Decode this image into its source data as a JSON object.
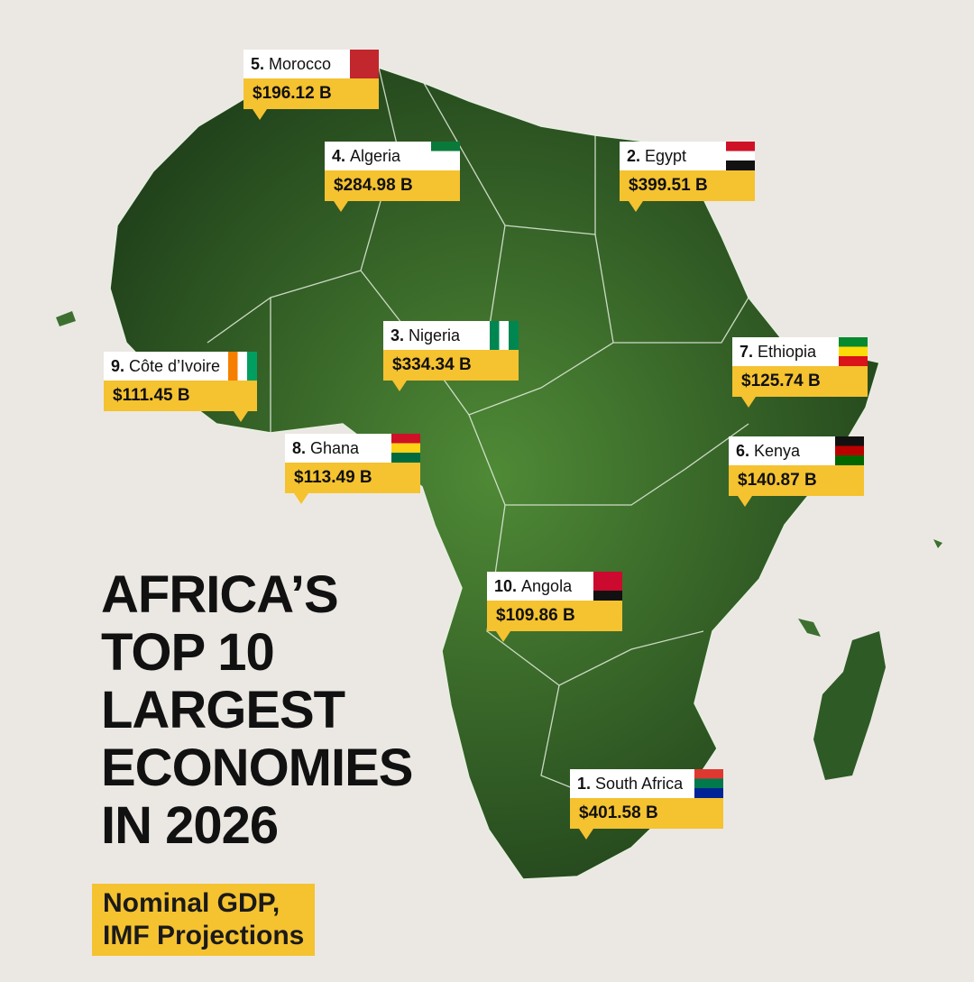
{
  "title": [
    "AFRICA’S",
    "TOP 10",
    "LARGEST",
    "ECONOMIES",
    "IN 2026"
  ],
  "subtitle": [
    "Nominal GDP,",
    "IMF Projections"
  ],
  "labels": [
    {
      "rank": "5.",
      "country": "Morocco",
      "value": "$196.12 B"
    },
    {
      "rank": "4.",
      "country": "Algeria",
      "value": "$284.98 B"
    },
    {
      "rank": "2.",
      "country": "Egypt",
      "value": "$399.51 B"
    },
    {
      "rank": "3.",
      "country": "Nigeria",
      "value": "$334.34 B"
    },
    {
      "rank": "9.",
      "country": "Côte d’Ivoire",
      "value": "$111.45 B"
    },
    {
      "rank": "7.",
      "country": "Ethiopia",
      "value": "$125.74 B"
    },
    {
      "rank": "8.",
      "country": "Ghana",
      "value": "$113.49 B"
    },
    {
      "rank": "6.",
      "country": "Kenya",
      "value": "$140.87 B"
    },
    {
      "rank": "10.",
      "country": "Angola",
      "value": "$109.86 B"
    },
    {
      "rank": "1.",
      "country": "South Africa",
      "value": "$401.58 B"
    }
  ]
}
